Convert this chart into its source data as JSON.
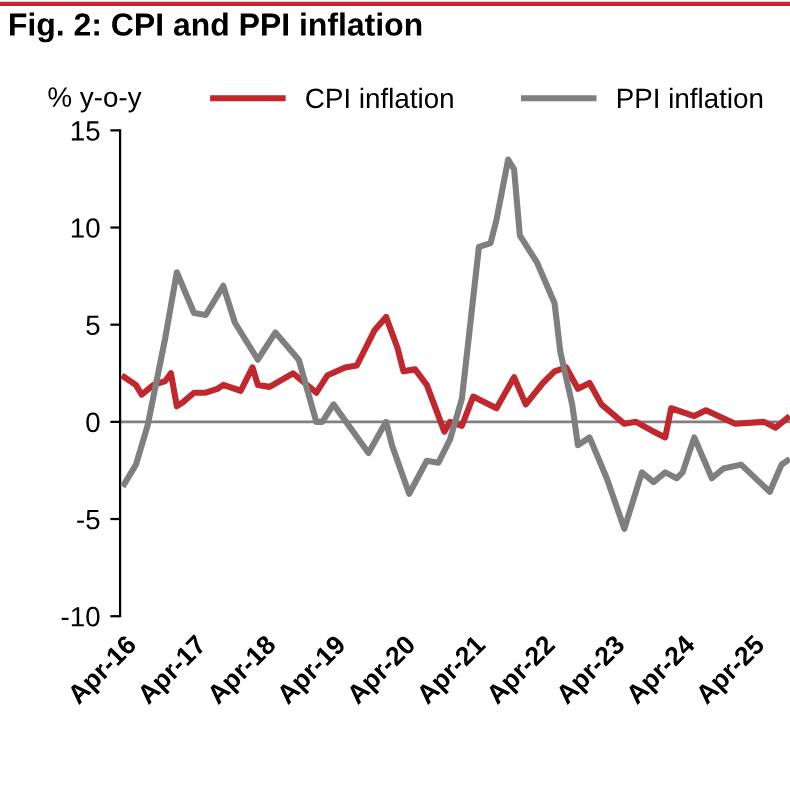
{
  "chart_data": {
    "type": "line",
    "title": "Fig. 2: CPI and PPI inflation",
    "ylabel": "% y-o-y",
    "xlim": [
      "2016-03-10",
      "2025-10-15"
    ],
    "xticks": [
      {
        "value": "2016-04",
        "label": "Apr-16"
      },
      {
        "value": "2017-04",
        "label": "Apr-17"
      },
      {
        "value": "2018-04",
        "label": "Apr-18"
      },
      {
        "value": "2019-04",
        "label": "Apr-19"
      },
      {
        "value": "2020-04",
        "label": "Apr-20"
      },
      {
        "value": "2021-04",
        "label": "Apr-21"
      },
      {
        "value": "2022-04",
        "label": "Apr-22"
      },
      {
        "value": "2023-04",
        "label": "Apr-23"
      },
      {
        "value": "2024-04",
        "label": "Apr-24"
      },
      {
        "value": "2025-04",
        "label": "Apr-25"
      }
    ],
    "ylim": [
      -10,
      15
    ],
    "yticks": [
      -10,
      -5,
      0,
      5,
      10,
      15
    ],
    "grid": false,
    "legend": "top",
    "line_style": "solid",
    "marker": "none",
    "ref_lines": [
      {
        "axis": "y",
        "value": 0,
        "color": "#808080"
      }
    ],
    "series": [
      {
        "name": "CPI inflation",
        "color": "#c0282d",
        "x": [
          "2016-04",
          "2016-06",
          "2016-07",
          "2016-09",
          "2016-11",
          "2016-12",
          "2017-01",
          "2017-02",
          "2017-04",
          "2017-06",
          "2017-08",
          "2017-09",
          "2017-12",
          "2018-02",
          "2018-03",
          "2018-05",
          "2018-09",
          "2019-01",
          "2019-03",
          "2019-06",
          "2019-08",
          "2019-11",
          "2020-01",
          "2020-03",
          "2020-04",
          "2020-06",
          "2020-08",
          "2020-11",
          "2020-12",
          "2021-02",
          "2021-04",
          "2021-08",
          "2021-11",
          "2022-01",
          "2022-04",
          "2022-06",
          "2022-08",
          "2022-10",
          "2022-12",
          "2023-02",
          "2023-06",
          "2023-08",
          "2023-11",
          "2024-01",
          "2024-02",
          "2024-06",
          "2024-08",
          "2025-01",
          "2025-06",
          "2025-08",
          "2025-10"
        ],
        "values": [
          2.3,
          1.9,
          1.4,
          1.9,
          2.1,
          2.5,
          0.8,
          1.0,
          1.5,
          1.5,
          1.7,
          1.9,
          1.6,
          2.8,
          1.9,
          1.8,
          2.5,
          1.5,
          2.4,
          2.8,
          2.9,
          4.7,
          5.4,
          3.8,
          2.6,
          2.7,
          1.9,
          -0.5,
          0,
          -0.2,
          1.3,
          0.7,
          2.3,
          0.9,
          2.0,
          2.6,
          2.8,
          1.7,
          2.0,
          0.9,
          -0.1,
          0,
          -0.5,
          -0.8,
          0.7,
          0.3,
          0.6,
          -0.1,
          0,
          -0.3,
          0.2
        ]
      },
      {
        "name": "PPI inflation",
        "color": "#7f7f7f",
        "x": [
          "2016-04",
          "2016-06",
          "2016-08",
          "2016-11",
          "2017-01",
          "2017-04",
          "2017-06",
          "2017-09",
          "2017-11",
          "2018-03",
          "2018-06",
          "2018-10",
          "2019-01",
          "2019-02",
          "2019-04",
          "2019-10",
          "2020-01",
          "2020-02",
          "2020-05",
          "2020-08",
          "2020-10",
          "2020-12",
          "2021-02",
          "2021-05",
          "2021-07",
          "2021-08",
          "2021-10",
          "2021-11",
          "2021-12",
          "2022-03",
          "2022-06",
          "2022-07",
          "2022-09",
          "2022-10",
          "2022-12",
          "2023-03",
          "2023-06",
          "2023-09",
          "2023-11",
          "2024-01",
          "2024-03",
          "2024-04",
          "2024-06",
          "2024-09",
          "2024-11",
          "2025-02",
          "2025-07",
          "2025-09",
          "2025-10"
        ],
        "values": [
          -3.2,
          -2.2,
          -0.2,
          4.3,
          7.7,
          5.6,
          5.5,
          7.0,
          5.1,
          3.2,
          4.6,
          3.2,
          0,
          0,
          0.9,
          -1.6,
          0,
          -1.2,
          -3.7,
          -2.0,
          -2.1,
          -0.9,
          1.2,
          9.0,
          9.2,
          10.4,
          13.5,
          13.0,
          9.6,
          8.2,
          6.1,
          3.6,
          0.9,
          -1.2,
          -0.8,
          -2.9,
          -5.5,
          -2.6,
          -3.1,
          -2.6,
          -2.9,
          -2.6,
          -0.8,
          -2.9,
          -2.4,
          -2.2,
          -3.6,
          -2.2,
          -2.0
        ]
      }
    ]
  }
}
